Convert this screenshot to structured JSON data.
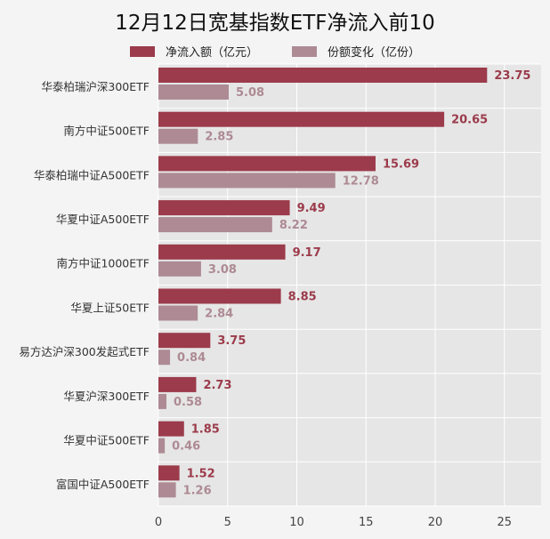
{
  "chart_data": {
    "type": "bar",
    "orientation": "horizontal",
    "title": "12月12日宽基指数ETF净流入前10",
    "categories": [
      "华泰柏瑞沪深300ETF",
      "南方中证500ETF",
      "华泰柏瑞中证A500ETF",
      "华夏中证A500ETF",
      "南方中证1000ETF",
      "华夏上证50ETF",
      "易方达沪深300发起式ETF",
      "华夏沪深300ETF",
      "华夏中证500ETF",
      "富国中证A500ETF"
    ],
    "series": [
      {
        "name": "净流入额（亿元）",
        "values": [
          23.75,
          20.65,
          15.69,
          9.49,
          9.17,
          8.85,
          3.75,
          2.73,
          1.85,
          1.52
        ],
        "labels": [
          "23.75",
          "20.65",
          "15.69",
          "9.49",
          "9.17",
          "8.85",
          "3.75",
          "2.73",
          "1.85",
          "1.52"
        ],
        "color": "#9b3b4b"
      },
      {
        "name": "份额变化（亿份）",
        "values": [
          5.08,
          2.85,
          12.78,
          8.22,
          3.08,
          2.84,
          0.84,
          0.58,
          0.46,
          1.26
        ],
        "labels": [
          "5.08",
          "2.85",
          "12.78",
          "8.22",
          "3.08",
          "2.84",
          "0.84",
          "0.58",
          "0.46",
          "1.26"
        ],
        "color": "#ad8a94"
      }
    ],
    "xlim": [
      0,
      27.5
    ],
    "xticks": [
      0,
      5,
      10,
      15,
      20,
      25
    ],
    "xtick_labels": [
      "0",
      "5",
      "10",
      "15",
      "20",
      "25"
    ],
    "grid": true,
    "legend_position": "top-center"
  }
}
